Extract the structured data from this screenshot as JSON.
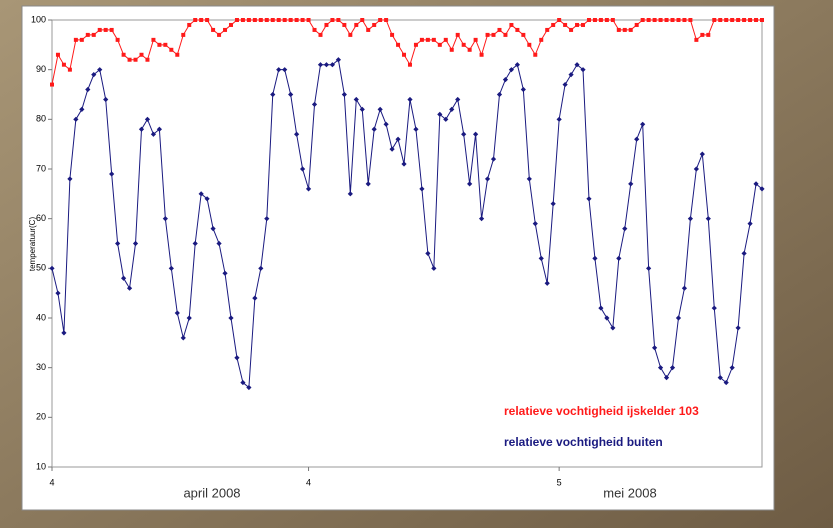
{
  "chart_data": {
    "type": "line",
    "y_label": "temperatuur(C)",
    "annotations": [
      "april 2008",
      "mei 2008"
    ],
    "categories": [
      "4",
      null,
      null,
      null,
      null,
      null,
      null,
      null,
      null,
      null,
      null,
      null,
      null,
      null,
      null,
      null,
      null,
      null,
      null,
      null,
      null,
      null,
      null,
      null,
      null,
      null,
      null,
      null,
      null,
      null,
      null,
      null,
      null,
      null,
      null,
      null,
      null,
      null,
      null,
      null,
      null,
      null,
      null,
      "4",
      null,
      null,
      null,
      null,
      null,
      null,
      null,
      null,
      null,
      null,
      null,
      null,
      null,
      null,
      null,
      null,
      null,
      null,
      null,
      null,
      null,
      null,
      null,
      null,
      null,
      null,
      null,
      null,
      null,
      null,
      null,
      null,
      null,
      null,
      null,
      null,
      null,
      null,
      null,
      null,
      null,
      "5",
      null,
      null,
      null,
      null,
      null,
      null,
      null,
      null,
      null,
      null,
      null,
      null,
      null,
      null,
      null,
      null,
      null,
      null,
      null,
      null,
      null,
      null,
      null,
      null,
      null,
      null,
      null,
      null,
      null,
      null,
      null,
      null,
      null,
      null
    ],
    "series": [
      {
        "name": "relatieve vochtigheid ijskelder 103",
        "color": "#ff1a1a",
        "marker": "square",
        "values": [
          87,
          93,
          91,
          90,
          96,
          96,
          97,
          97,
          98,
          98,
          98,
          96,
          93,
          92,
          92,
          93,
          92,
          96,
          95,
          95,
          94,
          93,
          97,
          99,
          100,
          100,
          100,
          98,
          97,
          98,
          99,
          100,
          100,
          100,
          100,
          100,
          100,
          100,
          100,
          100,
          100,
          100,
          100,
          100,
          98,
          97,
          99,
          100,
          100,
          99,
          97,
          99,
          100,
          98,
          99,
          100,
          100,
          97,
          95,
          93,
          91,
          95,
          96,
          96,
          96,
          95,
          96,
          94,
          97,
          95,
          94,
          96,
          93,
          97,
          97,
          98,
          97,
          99,
          98,
          97,
          95,
          93,
          96,
          98,
          99,
          100,
          99,
          98,
          99,
          99,
          100,
          100,
          100,
          100,
          100,
          98,
          98,
          98,
          99,
          100,
          100,
          100,
          100,
          100,
          100,
          100,
          100,
          100,
          96,
          97,
          97,
          100,
          100,
          100,
          100,
          100,
          100,
          100,
          100,
          100
        ]
      },
      {
        "name": "relatieve vochtigheid buiten",
        "color": "#1a1a80",
        "marker": "diamond",
        "values": [
          50,
          45,
          37,
          68,
          80,
          82,
          86,
          89,
          90,
          84,
          69,
          55,
          48,
          46,
          55,
          78,
          80,
          77,
          78,
          60,
          50,
          41,
          36,
          40,
          55,
          65,
          64,
          58,
          55,
          49,
          40,
          32,
          27,
          26,
          44,
          50,
          60,
          85,
          90,
          90,
          85,
          77,
          70,
          66,
          83,
          91,
          91,
          91,
          92,
          85,
          65,
          84,
          82,
          67,
          78,
          82,
          79,
          74,
          76,
          71,
          84,
          78,
          66,
          53,
          50,
          81,
          80,
          82,
          84,
          77,
          67,
          77,
          60,
          68,
          72,
          85,
          88,
          90,
          91,
          86,
          68,
          59,
          52,
          47,
          63,
          80,
          87,
          89,
          91,
          90,
          64,
          52,
          42,
          40,
          38,
          52,
          58,
          67,
          76,
          79,
          50,
          34,
          30,
          28,
          30,
          40,
          46,
          60,
          70,
          73,
          60,
          42,
          28,
          27,
          30,
          38,
          53,
          59,
          67,
          66
        ]
      }
    ],
    "ylim": [
      10,
      100
    ],
    "yticks": [
      10,
      20,
      30,
      40,
      50,
      60,
      70,
      80,
      90,
      100
    ],
    "grid": false,
    "legend": "lower right"
  }
}
